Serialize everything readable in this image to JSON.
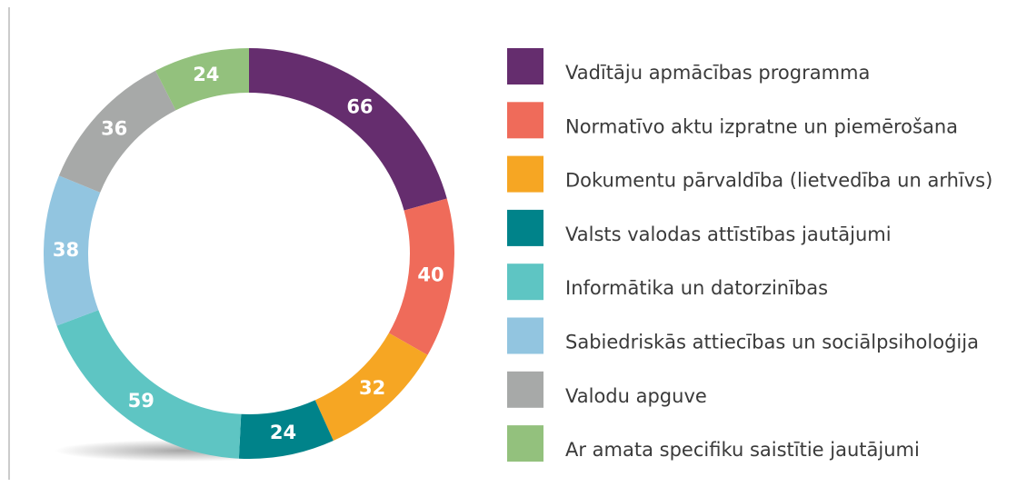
{
  "chart_data": {
    "type": "donut",
    "categories": [
      "Vadītāju apmācības programma",
      "Normatīvo aktu izpratne un piemērošana",
      "Dokumentu pārvaldība (lietvedība un arhīvs)",
      "Valsts valodas attīstības jautājumi",
      "Informātika un datorzinības",
      "Sabiedriskās attiecības un sociālpsiholoģija",
      "Valodu apguve",
      "Ar amata specifiku saistītie jautājumi"
    ],
    "values": [
      66,
      40,
      32,
      24,
      59,
      38,
      36,
      24
    ],
    "colors": [
      "#652d6e",
      "#ef6b5a",
      "#f6a623",
      "#00838a",
      "#5ec5c3",
      "#92c5e0",
      "#a7a9a8",
      "#93c17d"
    ]
  }
}
